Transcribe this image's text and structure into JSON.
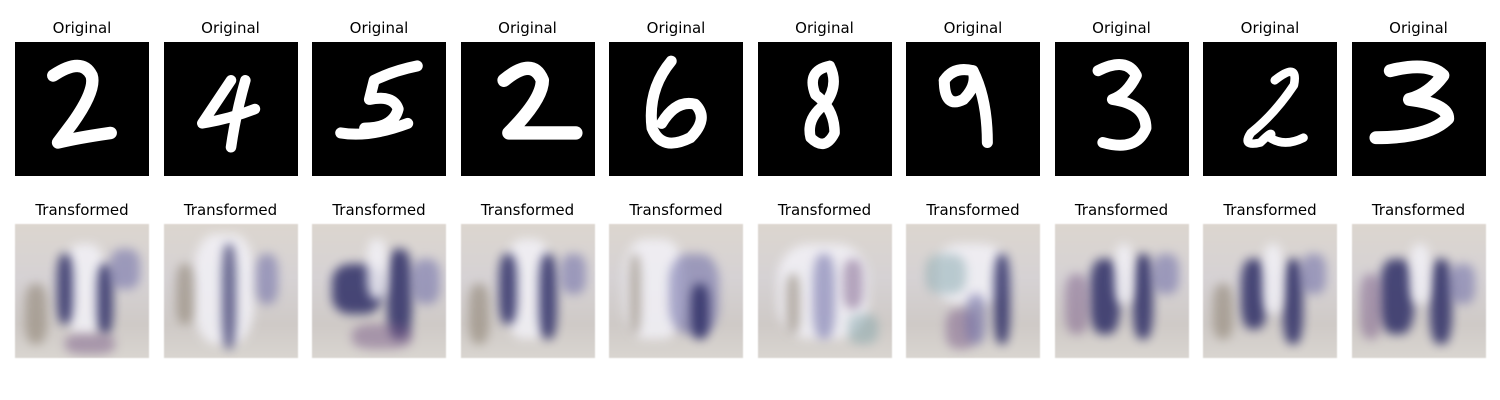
{
  "titles": {
    "original": "Original",
    "transformed": "Transformed"
  },
  "originals": [
    {
      "icon": "digit-2-icon"
    },
    {
      "icon": "digit-4-icon"
    },
    {
      "icon": "digit-5-icon"
    },
    {
      "icon": "digit-2-icon"
    },
    {
      "icon": "digit-6-icon"
    },
    {
      "icon": "digit-8-icon"
    },
    {
      "icon": "digit-9-icon"
    },
    {
      "icon": "digit-3-icon"
    },
    {
      "icon": "digit-2-icon"
    },
    {
      "icon": "digit-3-icon"
    }
  ],
  "colors": {
    "digit_background": "#000000",
    "digit_stroke": "#ffffff",
    "transformed_dark": "#2e2e66",
    "transformed_light": "#f2f1f7"
  }
}
